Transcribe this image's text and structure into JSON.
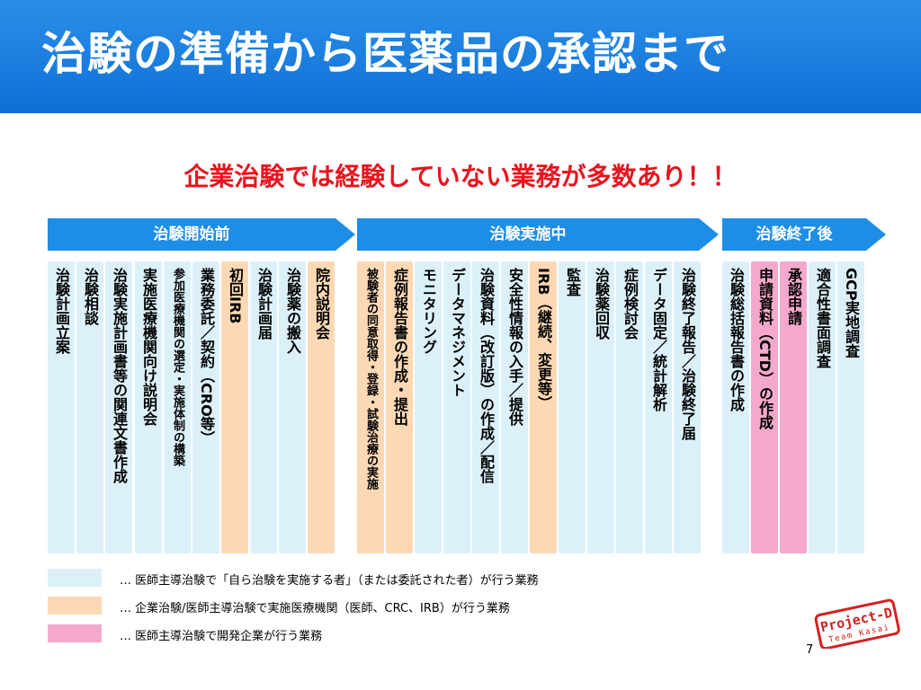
{
  "title": "治験の準備から医薬品の承認まで",
  "subtitle": "企業治験では経験していない業務が多数あり！！",
  "colors": {
    "header": "#1a7fe0",
    "arrow": "#1e8de6",
    "subtitle": "#e8141e",
    "light_blue": "#dcf0fa",
    "peach": "#fcd9b4",
    "pink": "#f4a9cc"
  },
  "phases": [
    {
      "label": "治験開始前"
    },
    {
      "label": "治験実施中"
    },
    {
      "label": "治験終了後"
    }
  ],
  "columns": [
    {
      "text": "治験計画立案",
      "category": "light_blue"
    },
    {
      "text": "治験相談",
      "category": "light_blue"
    },
    {
      "text": "治験実施計画書等の関連文書作成",
      "category": "light_blue"
    },
    {
      "text": "実施医療機関向け説明会",
      "category": "light_blue"
    },
    {
      "text": "参加医療機関の選定・実施体制の構築",
      "category": "light_blue"
    },
    {
      "text": "業務委託／契約（CRO等）",
      "category": "light_blue"
    },
    {
      "text": "初回IRB",
      "category": "peach"
    },
    {
      "text": "治験計画届",
      "category": "light_blue"
    },
    {
      "text": "治験薬の搬入",
      "category": "light_blue"
    },
    {
      "text": "院内説明会",
      "category": "peach"
    },
    {
      "text": "被験者の同意取得・登録・試験治療の実施",
      "category": "peach"
    },
    {
      "text": "症例報告書の作成・提出",
      "category": "peach"
    },
    {
      "text": "モニタリング",
      "category": "light_blue"
    },
    {
      "text": "データマネジメント",
      "category": "light_blue"
    },
    {
      "text": "治験資料（改訂版）の作成／配信",
      "category": "light_blue"
    },
    {
      "text": "安全性情報の入手／提供",
      "category": "light_blue"
    },
    {
      "text": "IRB（継続、変更等）",
      "category": "peach"
    },
    {
      "text": "監査",
      "category": "light_blue"
    },
    {
      "text": "治験薬回収",
      "category": "light_blue"
    },
    {
      "text": "症例検討会",
      "category": "light_blue"
    },
    {
      "text": "データ固定／統計解析",
      "category": "light_blue"
    },
    {
      "text": "治験終了報告／治験終了届",
      "category": "light_blue"
    },
    {
      "text": "治験総括報告書の作成",
      "category": "light_blue"
    },
    {
      "text": "申請資料（CTD）の作成",
      "category": "pink"
    },
    {
      "text": "承認申請",
      "category": "pink"
    },
    {
      "text": "適合性書面調査",
      "category": "light_blue"
    },
    {
      "text": "GCP実地調査",
      "category": "light_blue"
    }
  ],
  "legend": [
    {
      "category": "light_blue",
      "text": "… 医師主導治験で「自ら治験を実施する者」（または委託された者）が行う業務"
    },
    {
      "category": "peach",
      "text": "… 企業治験/医師主導治験で実施医療機関（医師、CRC、IRB）が行う業務"
    },
    {
      "category": "pink",
      "text": "… 医師主導治験で開発企業が行う業務"
    }
  ],
  "page_number": "7",
  "stamp": {
    "line1": "Project-D",
    "line2": "Team Kasai"
  }
}
